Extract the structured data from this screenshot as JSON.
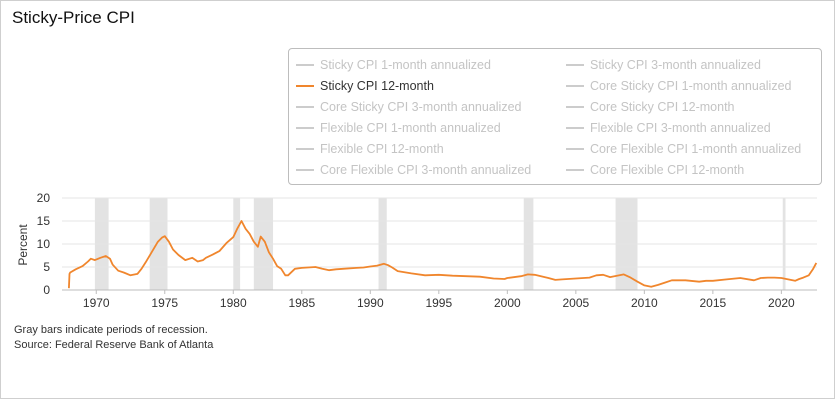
{
  "title": "Sticky-Price CPI",
  "legend": [
    {
      "label": "Sticky CPI 1-month annualized",
      "visible": false
    },
    {
      "label": "Sticky CPI 3-month annualized",
      "visible": false
    },
    {
      "label": "Sticky CPI 12-month",
      "visible": true
    },
    {
      "label": "Core Sticky CPI 1-month annualized",
      "visible": false
    },
    {
      "label": "Core Sticky CPI 3-month annualized",
      "visible": false
    },
    {
      "label": "Core Sticky CPI 12-month",
      "visible": false
    },
    {
      "label": "Flexible CPI 1-month annualized",
      "visible": false
    },
    {
      "label": "Flexible CPI 3-month annualized",
      "visible": false
    },
    {
      "label": "Flexible CPI 12-month",
      "visible": false
    },
    {
      "label": "Core Flexible CPI 1-month annualized",
      "visible": false
    },
    {
      "label": "Core Flexible CPI 3-month annualized",
      "visible": false
    },
    {
      "label": "Core Flexible CPI 12-month",
      "visible": false
    }
  ],
  "footnotes": {
    "recession_note": "Gray bars indicate periods of recession.",
    "source": "Source: Federal Reserve Bank of Atlanta"
  },
  "colors": {
    "series": "#f0862d",
    "recession": "#e3e3e3",
    "grid": "#e6e6e6",
    "legend_inactive": "#cccccc"
  },
  "chart_data": {
    "type": "line",
    "title": "Sticky-Price CPI",
    "xlabel": "",
    "ylabel": "Percent",
    "xlim": [
      1967.5,
      2022.6
    ],
    "ylim": [
      0,
      20
    ],
    "yticks": [
      "0",
      "5",
      "10",
      "15",
      "20"
    ],
    "xticks": [
      "1970",
      "1975",
      "1980",
      "1985",
      "1990",
      "1995",
      "2000",
      "2005",
      "2010",
      "2015",
      "2020"
    ],
    "xtick_values": [
      1970,
      1975,
      1980,
      1985,
      1990,
      1995,
      2000,
      2005,
      2010,
      2015,
      2020
    ],
    "grid": true,
    "legend_position": "top-right",
    "recessions": [
      [
        1969.9,
        1970.9
      ],
      [
        1973.9,
        1975.2
      ],
      [
        1980.0,
        1980.5
      ],
      [
        1981.5,
        1982.9
      ],
      [
        1990.6,
        1991.2
      ],
      [
        2001.2,
        2001.9
      ],
      [
        2007.9,
        2009.5
      ],
      [
        2020.1,
        2020.3
      ]
    ],
    "series": [
      {
        "name": "Sticky CPI 12-month",
        "x": [
          1968.0,
          1968.05,
          1968.1,
          1968.5,
          1969.0,
          1969.4,
          1969.6,
          1969.9,
          1970.3,
          1970.7,
          1971.0,
          1971.2,
          1971.6,
          1972.0,
          1972.5,
          1973.0,
          1973.3,
          1973.6,
          1974.0,
          1974.5,
          1974.8,
          1975.0,
          1975.3,
          1975.6,
          1976.0,
          1976.5,
          1977.0,
          1977.4,
          1977.8,
          1978.0,
          1978.5,
          1979.0,
          1979.5,
          1980.0,
          1980.3,
          1980.6,
          1980.9,
          1981.2,
          1981.5,
          1981.8,
          1982.0,
          1982.3,
          1982.6,
          1982.9,
          1983.2,
          1983.5,
          1983.8,
          1984.0,
          1984.5,
          1985.0,
          1986.0,
          1986.5,
          1987.0,
          1987.5,
          1988.0,
          1989.0,
          1989.5,
          1990.0,
          1990.5,
          1991.0,
          1991.3,
          1991.6,
          1992.0,
          1993.0,
          1994.0,
          1995.0,
          1996.0,
          1997.0,
          1998.0,
          1999.0,
          1999.8,
          2000.0,
          2001.0,
          2001.5,
          2002.0,
          2003.0,
          2003.5,
          2004.0,
          2005.0,
          2006.0,
          2006.5,
          2007.0,
          2007.5,
          2008.0,
          2008.5,
          2009.0,
          2009.5,
          2010.0,
          2010.5,
          2011.0,
          2011.5,
          2012.0,
          2013.0,
          2014.0,
          2014.5,
          2015.0,
          2016.0,
          2017.0,
          2018.0,
          2018.5,
          2019.0,
          2019.5,
          2020.0,
          2020.5,
          2021.0,
          2021.3,
          2021.6,
          2022.0,
          2022.3,
          2022.55
        ],
        "values": [
          0.4,
          3.5,
          3.8,
          4.5,
          5.2,
          6.2,
          6.8,
          6.5,
          7.0,
          7.4,
          6.8,
          5.5,
          4.2,
          3.8,
          3.2,
          3.5,
          4.6,
          6.0,
          8.0,
          10.5,
          11.4,
          11.7,
          10.5,
          8.8,
          7.6,
          6.5,
          7.0,
          6.2,
          6.5,
          7.0,
          7.7,
          8.5,
          10.2,
          11.5,
          13.4,
          15.0,
          13.3,
          12.2,
          10.5,
          9.4,
          11.6,
          10.5,
          8.2,
          6.8,
          5.2,
          4.6,
          3.2,
          3.2,
          4.6,
          4.8,
          5.0,
          4.6,
          4.3,
          4.5,
          4.6,
          4.8,
          4.9,
          5.1,
          5.3,
          5.7,
          5.4,
          4.9,
          4.1,
          3.6,
          3.2,
          3.3,
          3.1,
          3.0,
          2.9,
          2.5,
          2.4,
          2.6,
          3.0,
          3.4,
          3.3,
          2.6,
          2.2,
          2.3,
          2.5,
          2.7,
          3.2,
          3.3,
          2.8,
          3.1,
          3.4,
          2.7,
          1.8,
          1.0,
          0.7,
          1.1,
          1.6,
          2.1,
          2.1,
          1.8,
          2.0,
          2.0,
          2.3,
          2.6,
          2.1,
          2.6,
          2.7,
          2.7,
          2.6,
          2.3,
          2.0,
          2.4,
          2.7,
          3.2,
          4.5,
          5.9
        ]
      }
    ]
  }
}
